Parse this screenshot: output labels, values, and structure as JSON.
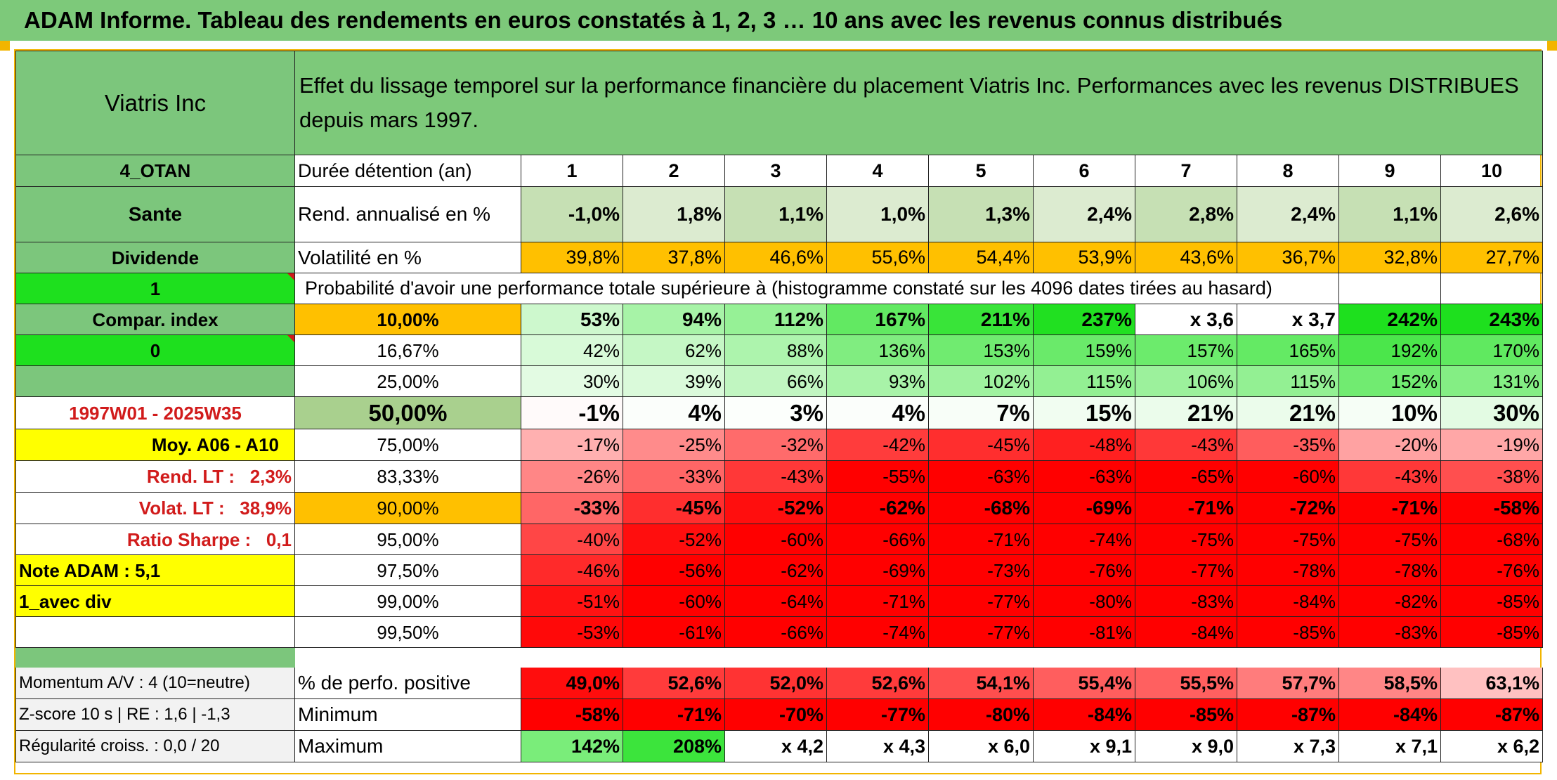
{
  "title": "ADAM Informe. Tableau des rendements en euros constatés à 1, 2, 3 … 10 ans avec les revenus connus distribués",
  "left": {
    "name": "Viatris Inc",
    "code": "4_OTAN",
    "sector": "Sante",
    "type": "Dividende",
    "flag1": "1",
    "compar_index": "Compar. index",
    "flag0": "0",
    "period": "1997W01 - 2025W35",
    "moy": "Moy. A06 - A10",
    "rend_lt": "Rend. LT :   2,3%",
    "volat_lt": "Volat. LT :   38,9%",
    "sharpe": "Ratio Sharpe :   0,1",
    "note": "Note ADAM : 5,1",
    "mode": "1_avec div",
    "momentum": "Momentum A/V : 4 (10=neutre)",
    "zscore": "Z-score 10 s | RE : 1,6 | -1,3",
    "regularite": "Régularité croiss. : 0,0 / 20"
  },
  "header_text": "Effet du lissage temporel sur la performance financière du placement Viatris Inc. Performances avec les revenus DISTRIBUES depuis mars 1997.",
  "row_labels": {
    "duree": "Durée détention (an)",
    "rend": "Rend. annualisé en %",
    "vol": "Volatilité en %",
    "prob": "Probabilité d'avoir une performance totale supérieure à (histogramme constaté sur les 4096 dates tirées au hasard)",
    "pos": "% de perfo. positive",
    "min": "Minimum",
    "max": "Maximum"
  },
  "years": [
    "1",
    "2",
    "3",
    "4",
    "5",
    "6",
    "7",
    "8",
    "9",
    "10"
  ],
  "rend": [
    "-1,0%",
    "1,8%",
    "1,1%",
    "1,0%",
    "1,3%",
    "2,4%",
    "2,8%",
    "2,4%",
    "1,1%",
    "2,6%"
  ],
  "vol": [
    "39,8%",
    "37,8%",
    "46,6%",
    "55,6%",
    "54,4%",
    "53,9%",
    "43,6%",
    "36,7%",
    "32,8%",
    "27,7%"
  ],
  "quantiles": [
    {
      "p": "10,00%",
      "v": [
        "53%",
        "94%",
        "112%",
        "167%",
        "211%",
        "237%",
        "x 3,6",
        "x 3,7",
        "242%",
        "243%"
      ]
    },
    {
      "p": "16,67%",
      "v": [
        "42%",
        "62%",
        "88%",
        "136%",
        "153%",
        "159%",
        "157%",
        "165%",
        "192%",
        "170%"
      ]
    },
    {
      "p": "25,00%",
      "v": [
        "30%",
        "39%",
        "66%",
        "93%",
        "102%",
        "115%",
        "106%",
        "115%",
        "152%",
        "131%"
      ]
    },
    {
      "p": "50,00%",
      "v": [
        "-1%",
        "4%",
        "3%",
        "4%",
        "7%",
        "15%",
        "21%",
        "21%",
        "10%",
        "30%"
      ]
    },
    {
      "p": "75,00%",
      "v": [
        "-17%",
        "-25%",
        "-32%",
        "-42%",
        "-45%",
        "-48%",
        "-43%",
        "-35%",
        "-20%",
        "-19%"
      ]
    },
    {
      "p": "83,33%",
      "v": [
        "-26%",
        "-33%",
        "-43%",
        "-55%",
        "-63%",
        "-63%",
        "-65%",
        "-60%",
        "-43%",
        "-38%"
      ]
    },
    {
      "p": "90,00%",
      "v": [
        "-33%",
        "-45%",
        "-52%",
        "-62%",
        "-68%",
        "-69%",
        "-71%",
        "-72%",
        "-71%",
        "-58%"
      ]
    },
    {
      "p": "95,00%",
      "v": [
        "-40%",
        "-52%",
        "-60%",
        "-66%",
        "-71%",
        "-74%",
        "-75%",
        "-75%",
        "-75%",
        "-68%"
      ]
    },
    {
      "p": "97,50%",
      "v": [
        "-46%",
        "-56%",
        "-62%",
        "-69%",
        "-73%",
        "-76%",
        "-77%",
        "-78%",
        "-78%",
        "-76%"
      ]
    },
    {
      "p": "99,00%",
      "v": [
        "-51%",
        "-60%",
        "-64%",
        "-71%",
        "-77%",
        "-80%",
        "-83%",
        "-84%",
        "-82%",
        "-85%"
      ]
    },
    {
      "p": "99,50%",
      "v": [
        "-53%",
        "-61%",
        "-66%",
        "-74%",
        "-77%",
        "-81%",
        "-84%",
        "-85%",
        "-83%",
        "-85%"
      ]
    }
  ],
  "pos": [
    "49,0%",
    "52,6%",
    "52,0%",
    "52,6%",
    "54,1%",
    "55,4%",
    "55,5%",
    "57,7%",
    "58,5%",
    "63,1%"
  ],
  "min": [
    "-58%",
    "-71%",
    "-70%",
    "-77%",
    "-80%",
    "-84%",
    "-85%",
    "-87%",
    "-84%",
    "-87%"
  ],
  "max": [
    "142%",
    "208%",
    "x 4,2",
    "x 4,3",
    "x 6,0",
    "x 9,1",
    "x 9,0",
    "x 7,3",
    "x 7,1",
    "x 6,2"
  ],
  "colors": {
    "title_green": "#7dc97a",
    "header_green": "#7dc97a",
    "label_green": "#7cc67c",
    "bright_green": "#1ee01e",
    "orange": "#ffc000",
    "yellow": "#ffff00",
    "light_green": "#c6e0b4",
    "median_green": "#a9d08e",
    "label_red": "#d11b1b"
  }
}
